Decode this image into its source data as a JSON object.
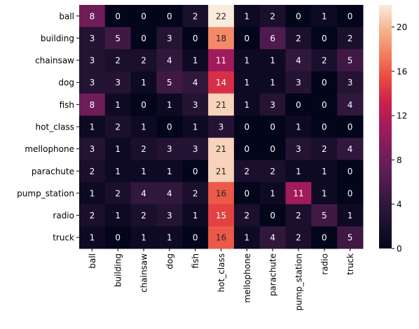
{
  "chart_data": {
    "type": "heatmap",
    "categories": [
      "ball",
      "building",
      "chainsaw",
      "dog",
      "fish",
      "hot_class",
      "mellophone",
      "parachute",
      "pump_station",
      "radio",
      "truck"
    ],
    "row_labels": [
      "ball",
      "building",
      "chainsaw",
      "dog",
      "fish",
      "hot_class",
      "mellophone",
      "parachute",
      "pump_station",
      "radio",
      "truck"
    ],
    "col_labels": [
      "ball",
      "building",
      "chainsaw",
      "dog",
      "fish",
      "hot_class",
      "mellophone",
      "parachute",
      "pump_station",
      "radio",
      "truck"
    ],
    "values": [
      [
        8,
        0,
        0,
        0,
        2,
        22,
        1,
        2,
        0,
        1,
        0
      ],
      [
        3,
        5,
        0,
        3,
        0,
        18,
        0,
        6,
        2,
        0,
        2
      ],
      [
        3,
        2,
        2,
        4,
        1,
        11,
        1,
        1,
        4,
        2,
        5
      ],
      [
        3,
        3,
        1,
        5,
        4,
        14,
        1,
        1,
        3,
        0,
        3
      ],
      [
        8,
        1,
        0,
        1,
        3,
        21,
        1,
        3,
        0,
        0,
        4
      ],
      [
        1,
        2,
        1,
        0,
        1,
        3,
        0,
        0,
        1,
        0,
        0
      ],
      [
        3,
        1,
        2,
        3,
        3,
        21,
        0,
        0,
        3,
        2,
        4
      ],
      [
        2,
        1,
        1,
        1,
        0,
        21,
        2,
        2,
        1,
        1,
        0
      ],
      [
        1,
        2,
        4,
        4,
        2,
        16,
        0,
        1,
        11,
        1,
        0
      ],
      [
        2,
        1,
        2,
        3,
        1,
        15,
        2,
        0,
        2,
        5,
        1
      ],
      [
        1,
        0,
        1,
        1,
        0,
        16,
        1,
        4,
        2,
        0,
        5
      ]
    ],
    "colormap": "rocket",
    "vmin": 0,
    "vmax": 22,
    "colorbar_ticks": [
      0,
      4,
      8,
      12,
      16,
      20
    ],
    "title": "",
    "xlabel": "",
    "ylabel": ""
  }
}
